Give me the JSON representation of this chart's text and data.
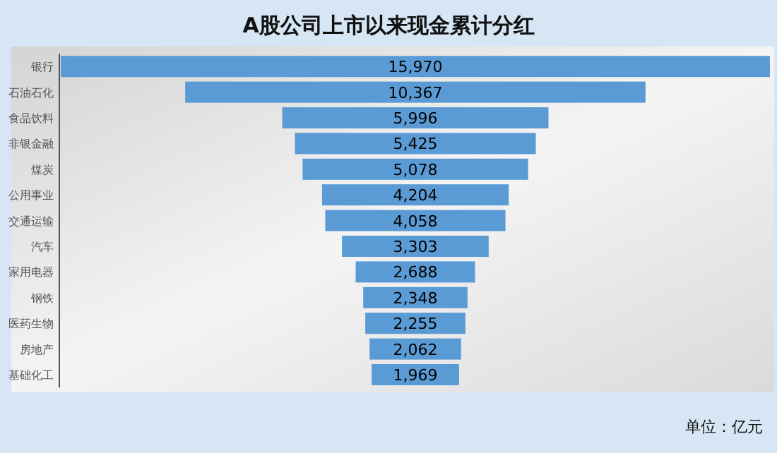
{
  "chart_data": {
    "type": "other",
    "title": "A股公司上市以来现金累计分红",
    "categories": [
      "银行",
      "石油石化",
      "食品饮料",
      "非银金融",
      "煤炭",
      "公用事业",
      "交通运输",
      "汽车",
      "家用电器",
      "钢铁",
      "医药生物",
      "房地产",
      "基础化工"
    ],
    "values": [
      15970,
      10367,
      5996,
      5425,
      5078,
      4204,
      4058,
      3303,
      2688,
      2348,
      2255,
      2062,
      1969
    ],
    "value_labels": [
      "15,970",
      "10,367",
      "5,996",
      "5,425",
      "5,078",
      "4,204",
      "4,058",
      "3,303",
      "2,688",
      "2,348",
      "2,255",
      "2,062",
      "1,969"
    ],
    "color": "#5b9bd5",
    "annotations": [
      "单位：亿元"
    ]
  }
}
